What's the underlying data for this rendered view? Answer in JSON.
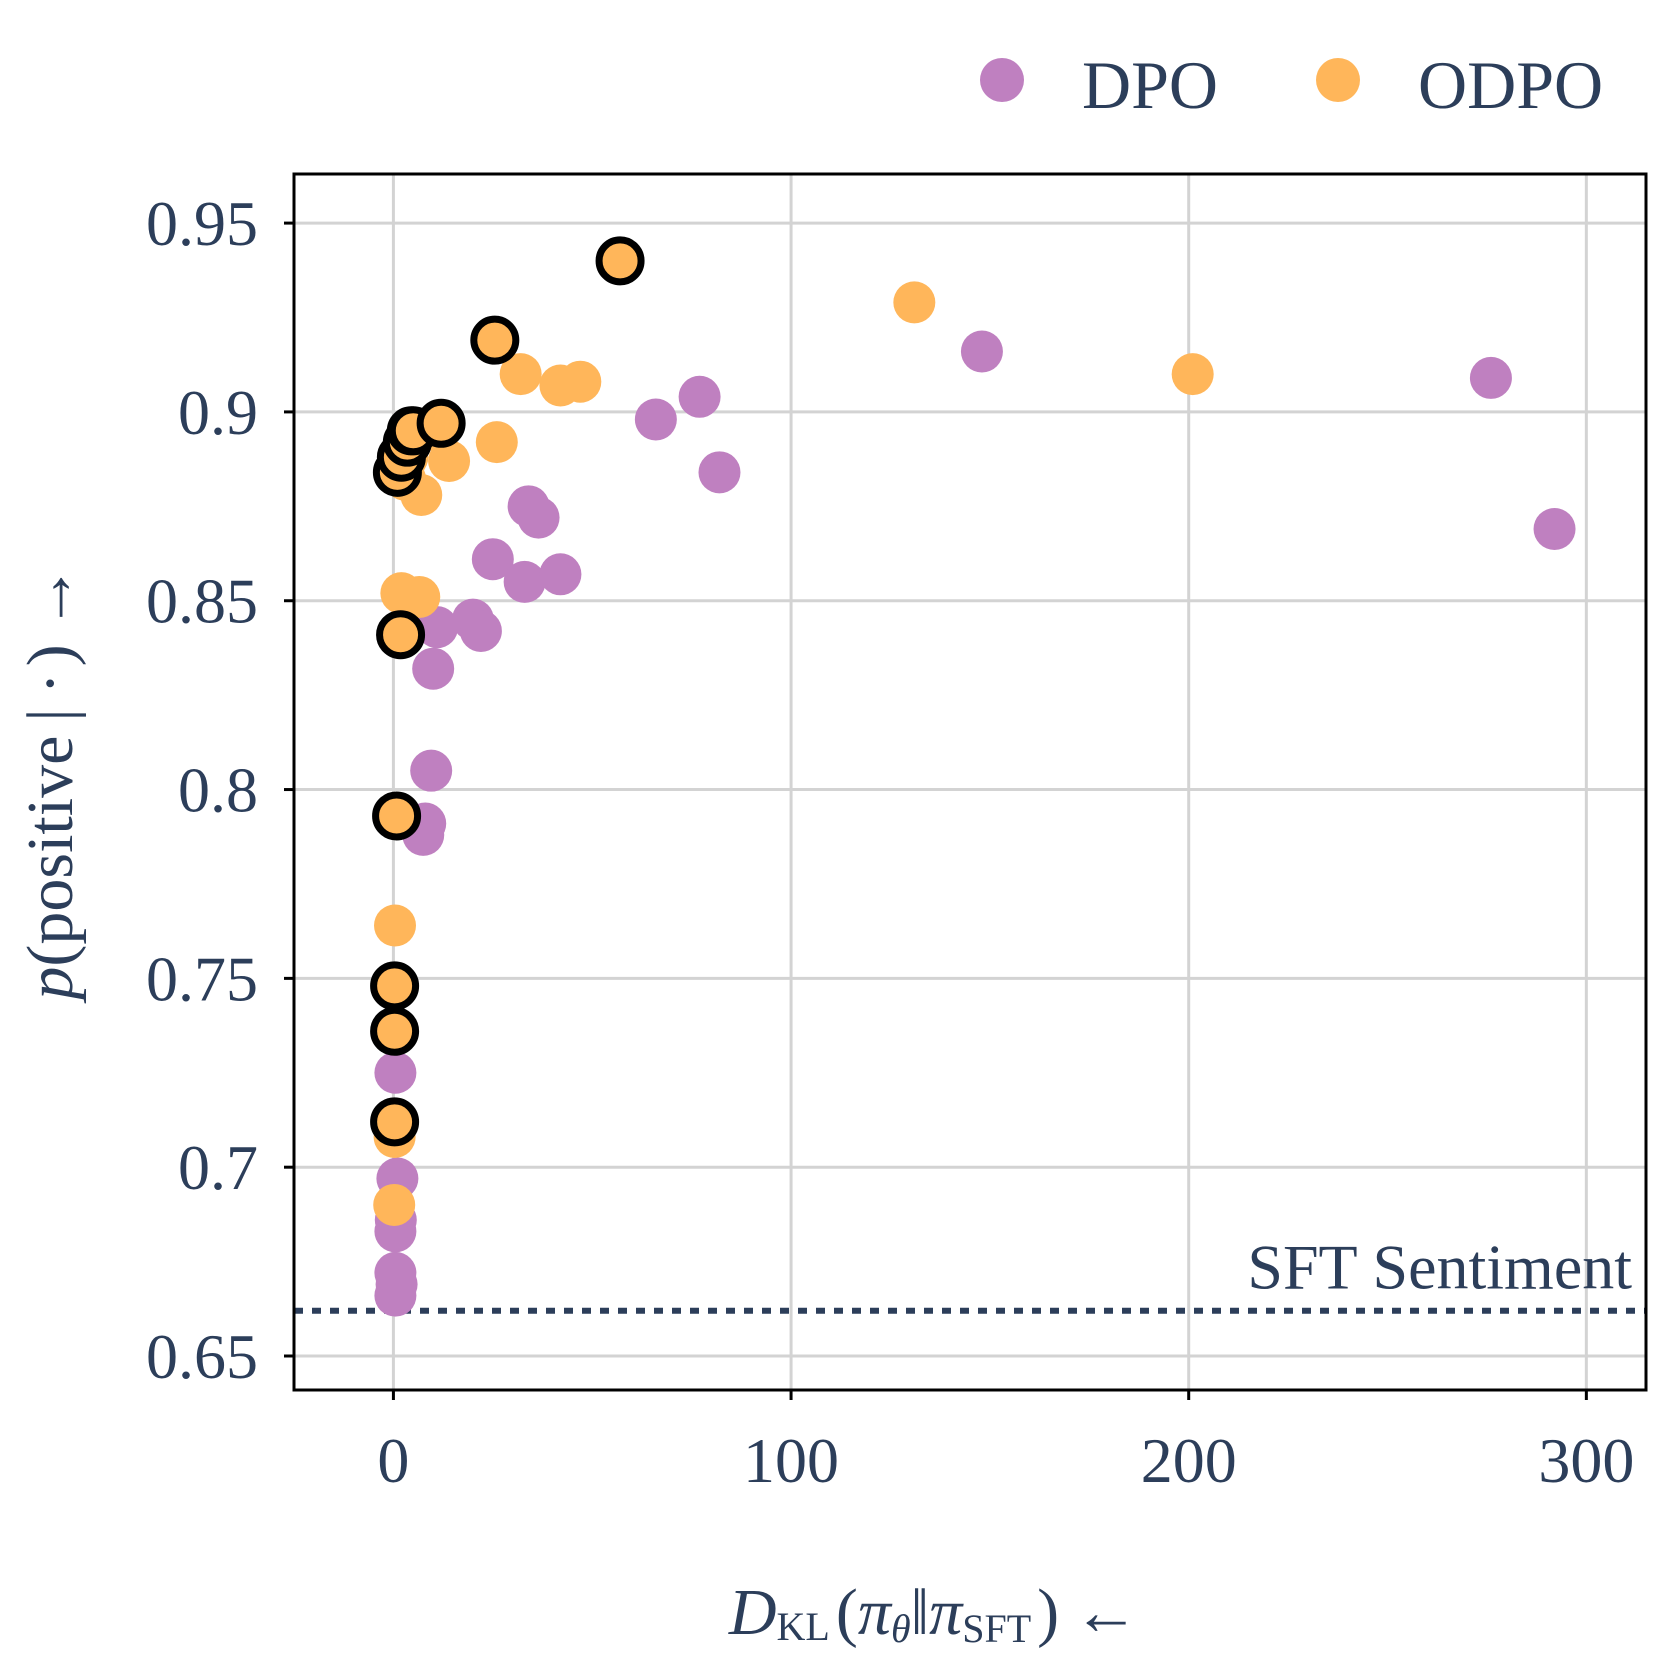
{
  "chart_data": {
    "type": "scatter",
    "xlabel": "D_KL(π_θ ‖ π_SFT) ←",
    "ylabel": "p(positive | ·) →",
    "xlabel_parts": {
      "main": "D",
      "sub": "KL",
      "open": "(",
      "pi1": "π",
      "theta": "θ",
      "bars": "‖",
      "pi2": "π",
      "sft": "SFT",
      "close": ")",
      "arrow": "←"
    },
    "ylabel_parts": {
      "p": "p",
      "open": "(",
      "text": "positive",
      "bar": "|",
      "dot": "·",
      "close": ")",
      "arrow": "→"
    },
    "xlim": [
      -25,
      315
    ],
    "ylim": [
      0.641,
      0.963
    ],
    "xticks": [
      0,
      100,
      200,
      300
    ],
    "xtick_labels": [
      "0",
      "100",
      "200",
      "300"
    ],
    "yticks": [
      0.65,
      0.7,
      0.75,
      0.8,
      0.85,
      0.9,
      0.95
    ],
    "ytick_labels": [
      "0.65",
      "0.7",
      "0.75",
      "0.8",
      "0.85",
      "0.9",
      "0.95"
    ],
    "grid": true,
    "legend_position": "top-right, above plot",
    "reference_line": {
      "label": "SFT Sentiment",
      "y": 0.662,
      "style": "dotted"
    },
    "colors": {
      "DPO": "#bf80c0",
      "ODPO": "#ffb65a",
      "highlight_edge": "#000000",
      "text": "#2c3e5a",
      "grid": "#d3d3d3"
    },
    "series": [
      {
        "name": "DPO",
        "points": [
          [
            0.5,
            0.666
          ],
          [
            0.8,
            0.669
          ],
          [
            0.5,
            0.672
          ],
          [
            0.5,
            0.683
          ],
          [
            0.6,
            0.686
          ],
          [
            1.0,
            0.697
          ],
          [
            0.5,
            0.725
          ],
          [
            7.5,
            0.788
          ],
          [
            8.0,
            0.791
          ],
          [
            9.5,
            0.805
          ],
          [
            10.0,
            0.832
          ],
          [
            11.0,
            0.843
          ],
          [
            20.0,
            0.845
          ],
          [
            22.0,
            0.842
          ],
          [
            25.0,
            0.861
          ],
          [
            33.0,
            0.855
          ],
          [
            34.0,
            0.875
          ],
          [
            36.5,
            0.872
          ],
          [
            42.0,
            0.857
          ],
          [
            66.0,
            0.898
          ],
          [
            77.0,
            0.904
          ],
          [
            82.0,
            0.884
          ],
          [
            148.0,
            0.916
          ],
          [
            276.0,
            0.909
          ],
          [
            292.0,
            0.869
          ]
        ]
      },
      {
        "name": "ODPO",
        "points": [
          [
            0.2,
            0.69
          ],
          [
            0.3,
            0.708
          ],
          [
            0.3,
            0.712
          ],
          [
            0.3,
            0.736
          ],
          [
            0.3,
            0.748
          ],
          [
            0.4,
            0.764
          ],
          [
            0.8,
            0.793
          ],
          [
            1.8,
            0.841
          ],
          [
            2.0,
            0.852
          ],
          [
            6.5,
            0.851
          ],
          [
            7.0,
            0.878
          ],
          [
            3.0,
            0.882
          ],
          [
            2.5,
            0.885
          ],
          [
            3.5,
            0.888
          ],
          [
            4.5,
            0.892
          ],
          [
            5.0,
            0.895
          ],
          [
            7.5,
            0.895
          ],
          [
            12.0,
            0.897
          ],
          [
            14.0,
            0.887
          ],
          [
            26.0,
            0.892
          ],
          [
            25.5,
            0.919
          ],
          [
            32.0,
            0.91
          ],
          [
            42.0,
            0.907
          ],
          [
            47.0,
            0.908
          ],
          [
            57.0,
            0.94
          ],
          [
            131.0,
            0.929
          ],
          [
            201.0,
            0.91
          ]
        ],
        "highlighted": [
          [
            0.3,
            0.712
          ],
          [
            0.3,
            0.736
          ],
          [
            0.3,
            0.748
          ],
          [
            0.8,
            0.793
          ],
          [
            1.8,
            0.841
          ],
          [
            1.0,
            0.884
          ],
          [
            2.0,
            0.888
          ],
          [
            3.5,
            0.892
          ],
          [
            4.5,
            0.895
          ],
          [
            5.0,
            0.895
          ],
          [
            12.0,
            0.897
          ],
          [
            25.5,
            0.919
          ],
          [
            57.0,
            0.94
          ]
        ]
      }
    ]
  }
}
